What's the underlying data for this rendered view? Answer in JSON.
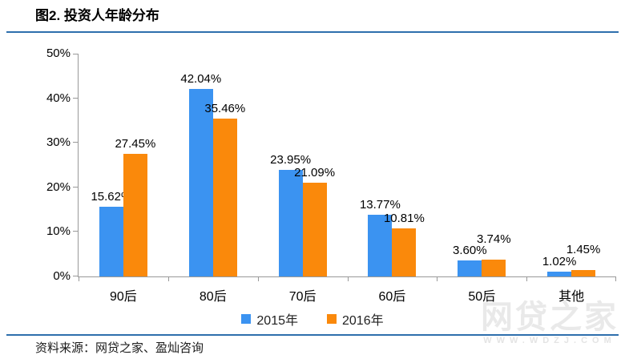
{
  "title": "图2. 投资人年龄分布",
  "source_note": "资料来源：网贷之家、盈灿咨询",
  "watermark": {
    "text": "网贷之家",
    "subtext": "WWW.WDZJ.COM"
  },
  "colors": {
    "series_2015": "#3B93F1",
    "series_2016": "#FA890B",
    "divider_blue": "#2E6FAD",
    "axis_gray": "#999999",
    "watermark_gray": "#E9E9E9"
  },
  "chart_data": {
    "type": "bar",
    "title": "图2. 投资人年龄分布",
    "categories": [
      "90后",
      "80后",
      "70后",
      "60后",
      "50后",
      "其他"
    ],
    "series": [
      {
        "name": "2015年",
        "color": "#3B93F1",
        "values": [
          15.62,
          42.04,
          23.95,
          13.77,
          3.6,
          1.02
        ],
        "labels": [
          "15.62%",
          "42.04%",
          "23.95%",
          "13.77%",
          "3.60%",
          "1.02%"
        ]
      },
      {
        "name": "2016年",
        "color": "#FA890B",
        "values": [
          27.45,
          35.46,
          21.09,
          10.81,
          3.74,
          1.45
        ],
        "labels": [
          "27.45%",
          "35.46%",
          "21.09%",
          "10.81%",
          "3.74%",
          "1.45%"
        ]
      }
    ],
    "value_suffix": "%",
    "ylim": [
      0,
      50
    ],
    "ytick_step": 10,
    "ytick_labels": [
      "0%",
      "10%",
      "20%",
      "30%",
      "40%",
      "50%"
    ],
    "grid": false,
    "legend_position": "bottom"
  }
}
